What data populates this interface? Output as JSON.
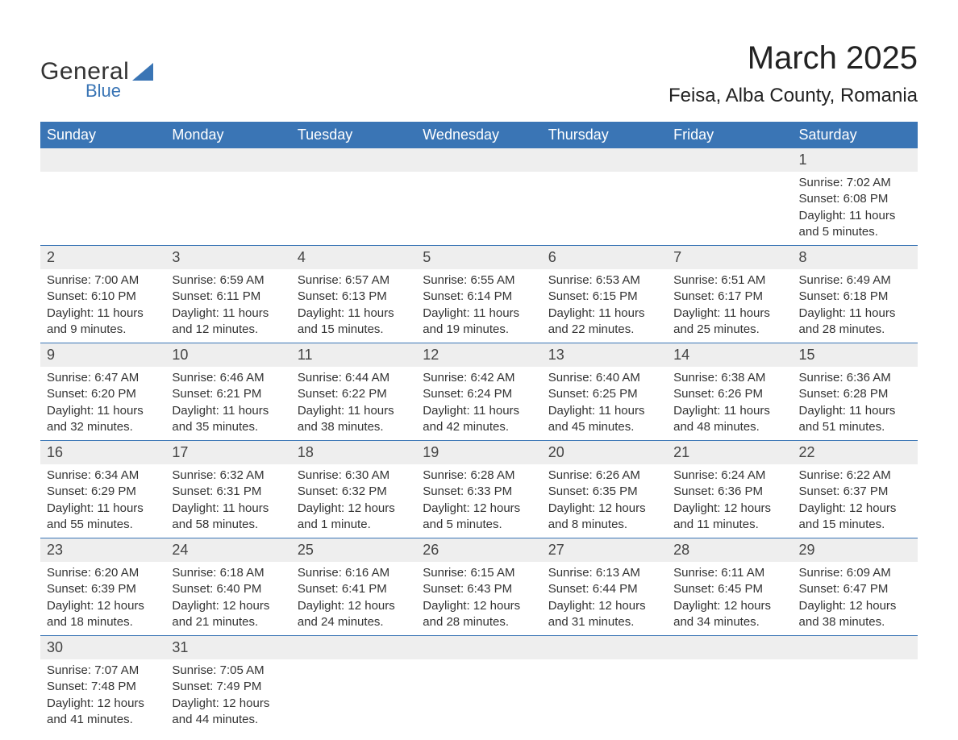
{
  "brand": {
    "name_part1": "General",
    "name_part2": "Blue",
    "text_color": "#333333",
    "accent_color": "#3a75b5"
  },
  "header": {
    "month_title": "March 2025",
    "location": "Feisa, Alba County, Romania"
  },
  "calendar": {
    "day_headers": [
      "Sunday",
      "Monday",
      "Tuesday",
      "Wednesday",
      "Thursday",
      "Friday",
      "Saturday"
    ],
    "header_bg": "#3a75b5",
    "header_fg": "#ffffff",
    "row_divider_color": "#3a75b5",
    "daynum_bg": "#eeeeee",
    "text_color": "#333333",
    "weeks": [
      {
        "days": [
          null,
          null,
          null,
          null,
          null,
          null,
          {
            "num": "1",
            "sunrise": "Sunrise: 7:02 AM",
            "sunset": "Sunset: 6:08 PM",
            "dl1": "Daylight: 11 hours",
            "dl2": "and 5 minutes."
          }
        ]
      },
      {
        "days": [
          {
            "num": "2",
            "sunrise": "Sunrise: 7:00 AM",
            "sunset": "Sunset: 6:10 PM",
            "dl1": "Daylight: 11 hours",
            "dl2": "and 9 minutes."
          },
          {
            "num": "3",
            "sunrise": "Sunrise: 6:59 AM",
            "sunset": "Sunset: 6:11 PM",
            "dl1": "Daylight: 11 hours",
            "dl2": "and 12 minutes."
          },
          {
            "num": "4",
            "sunrise": "Sunrise: 6:57 AM",
            "sunset": "Sunset: 6:13 PM",
            "dl1": "Daylight: 11 hours",
            "dl2": "and 15 minutes."
          },
          {
            "num": "5",
            "sunrise": "Sunrise: 6:55 AM",
            "sunset": "Sunset: 6:14 PM",
            "dl1": "Daylight: 11 hours",
            "dl2": "and 19 minutes."
          },
          {
            "num": "6",
            "sunrise": "Sunrise: 6:53 AM",
            "sunset": "Sunset: 6:15 PM",
            "dl1": "Daylight: 11 hours",
            "dl2": "and 22 minutes."
          },
          {
            "num": "7",
            "sunrise": "Sunrise: 6:51 AM",
            "sunset": "Sunset: 6:17 PM",
            "dl1": "Daylight: 11 hours",
            "dl2": "and 25 minutes."
          },
          {
            "num": "8",
            "sunrise": "Sunrise: 6:49 AM",
            "sunset": "Sunset: 6:18 PM",
            "dl1": "Daylight: 11 hours",
            "dl2": "and 28 minutes."
          }
        ]
      },
      {
        "days": [
          {
            "num": "9",
            "sunrise": "Sunrise: 6:47 AM",
            "sunset": "Sunset: 6:20 PM",
            "dl1": "Daylight: 11 hours",
            "dl2": "and 32 minutes."
          },
          {
            "num": "10",
            "sunrise": "Sunrise: 6:46 AM",
            "sunset": "Sunset: 6:21 PM",
            "dl1": "Daylight: 11 hours",
            "dl2": "and 35 minutes."
          },
          {
            "num": "11",
            "sunrise": "Sunrise: 6:44 AM",
            "sunset": "Sunset: 6:22 PM",
            "dl1": "Daylight: 11 hours",
            "dl2": "and 38 minutes."
          },
          {
            "num": "12",
            "sunrise": "Sunrise: 6:42 AM",
            "sunset": "Sunset: 6:24 PM",
            "dl1": "Daylight: 11 hours",
            "dl2": "and 42 minutes."
          },
          {
            "num": "13",
            "sunrise": "Sunrise: 6:40 AM",
            "sunset": "Sunset: 6:25 PM",
            "dl1": "Daylight: 11 hours",
            "dl2": "and 45 minutes."
          },
          {
            "num": "14",
            "sunrise": "Sunrise: 6:38 AM",
            "sunset": "Sunset: 6:26 PM",
            "dl1": "Daylight: 11 hours",
            "dl2": "and 48 minutes."
          },
          {
            "num": "15",
            "sunrise": "Sunrise: 6:36 AM",
            "sunset": "Sunset: 6:28 PM",
            "dl1": "Daylight: 11 hours",
            "dl2": "and 51 minutes."
          }
        ]
      },
      {
        "days": [
          {
            "num": "16",
            "sunrise": "Sunrise: 6:34 AM",
            "sunset": "Sunset: 6:29 PM",
            "dl1": "Daylight: 11 hours",
            "dl2": "and 55 minutes."
          },
          {
            "num": "17",
            "sunrise": "Sunrise: 6:32 AM",
            "sunset": "Sunset: 6:31 PM",
            "dl1": "Daylight: 11 hours",
            "dl2": "and 58 minutes."
          },
          {
            "num": "18",
            "sunrise": "Sunrise: 6:30 AM",
            "sunset": "Sunset: 6:32 PM",
            "dl1": "Daylight: 12 hours",
            "dl2": "and 1 minute."
          },
          {
            "num": "19",
            "sunrise": "Sunrise: 6:28 AM",
            "sunset": "Sunset: 6:33 PM",
            "dl1": "Daylight: 12 hours",
            "dl2": "and 5 minutes."
          },
          {
            "num": "20",
            "sunrise": "Sunrise: 6:26 AM",
            "sunset": "Sunset: 6:35 PM",
            "dl1": "Daylight: 12 hours",
            "dl2": "and 8 minutes."
          },
          {
            "num": "21",
            "sunrise": "Sunrise: 6:24 AM",
            "sunset": "Sunset: 6:36 PM",
            "dl1": "Daylight: 12 hours",
            "dl2": "and 11 minutes."
          },
          {
            "num": "22",
            "sunrise": "Sunrise: 6:22 AM",
            "sunset": "Sunset: 6:37 PM",
            "dl1": "Daylight: 12 hours",
            "dl2": "and 15 minutes."
          }
        ]
      },
      {
        "days": [
          {
            "num": "23",
            "sunrise": "Sunrise: 6:20 AM",
            "sunset": "Sunset: 6:39 PM",
            "dl1": "Daylight: 12 hours",
            "dl2": "and 18 minutes."
          },
          {
            "num": "24",
            "sunrise": "Sunrise: 6:18 AM",
            "sunset": "Sunset: 6:40 PM",
            "dl1": "Daylight: 12 hours",
            "dl2": "and 21 minutes."
          },
          {
            "num": "25",
            "sunrise": "Sunrise: 6:16 AM",
            "sunset": "Sunset: 6:41 PM",
            "dl1": "Daylight: 12 hours",
            "dl2": "and 24 minutes."
          },
          {
            "num": "26",
            "sunrise": "Sunrise: 6:15 AM",
            "sunset": "Sunset: 6:43 PM",
            "dl1": "Daylight: 12 hours",
            "dl2": "and 28 minutes."
          },
          {
            "num": "27",
            "sunrise": "Sunrise: 6:13 AM",
            "sunset": "Sunset: 6:44 PM",
            "dl1": "Daylight: 12 hours",
            "dl2": "and 31 minutes."
          },
          {
            "num": "28",
            "sunrise": "Sunrise: 6:11 AM",
            "sunset": "Sunset: 6:45 PM",
            "dl1": "Daylight: 12 hours",
            "dl2": "and 34 minutes."
          },
          {
            "num": "29",
            "sunrise": "Sunrise: 6:09 AM",
            "sunset": "Sunset: 6:47 PM",
            "dl1": "Daylight: 12 hours",
            "dl2": "and 38 minutes."
          }
        ]
      },
      {
        "days": [
          {
            "num": "30",
            "sunrise": "Sunrise: 7:07 AM",
            "sunset": "Sunset: 7:48 PM",
            "dl1": "Daylight: 12 hours",
            "dl2": "and 41 minutes."
          },
          {
            "num": "31",
            "sunrise": "Sunrise: 7:05 AM",
            "sunset": "Sunset: 7:49 PM",
            "dl1": "Daylight: 12 hours",
            "dl2": "and 44 minutes."
          },
          null,
          null,
          null,
          null,
          null
        ]
      }
    ]
  }
}
